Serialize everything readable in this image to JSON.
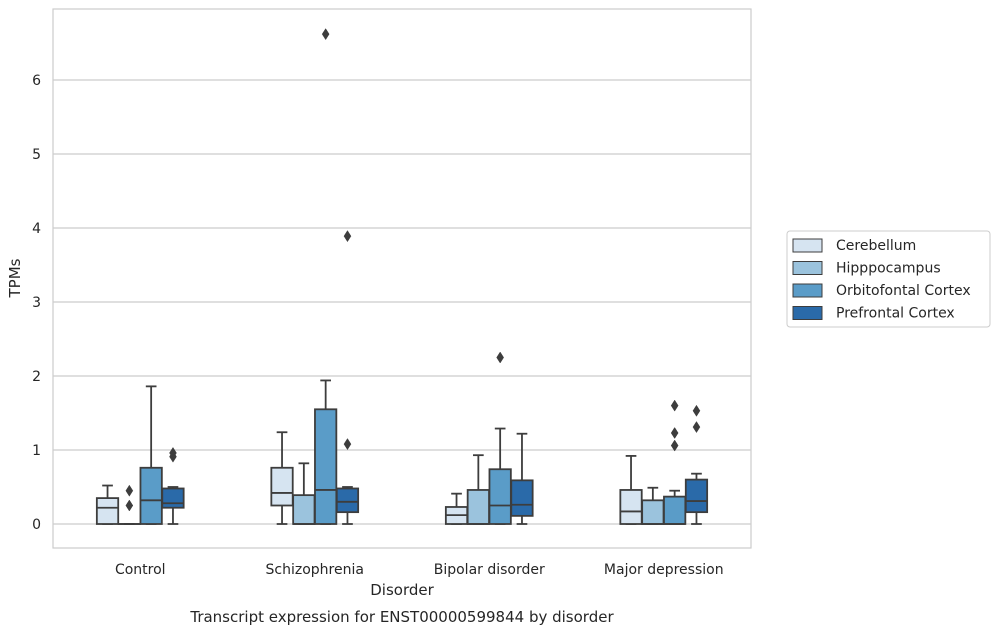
{
  "chart_data": {
    "type": "box",
    "title": "",
    "caption": "Transcript expression for ENST00000599844 by disorder",
    "xlabel": "Disorder",
    "ylabel": "TPMs",
    "ylim": [
      -0.32,
      6.95
    ],
    "yticks": [
      "0",
      "1",
      "2",
      "3",
      "4",
      "5",
      "6"
    ],
    "grid": true,
    "legend_position": "right",
    "categories": [
      "Control",
      "Schizophrenia",
      "Bipolar disorder",
      "Major depression"
    ],
    "series": [
      {
        "name": "Cerebellum",
        "color": "#d6e4f1",
        "boxes": [
          {
            "whisker_low": 0,
            "q1": 0,
            "median": 0.22,
            "q3": 0.35,
            "whisker_high": 0.52,
            "outliers": []
          },
          {
            "whisker_low": 0,
            "q1": 0.25,
            "median": 0.42,
            "q3": 0.76,
            "whisker_high": 1.24,
            "outliers": []
          },
          {
            "whisker_low": 0,
            "q1": 0,
            "median": 0.12,
            "q3": 0.23,
            "whisker_high": 0.41,
            "outliers": []
          },
          {
            "whisker_low": 0,
            "q1": 0,
            "median": 0.17,
            "q3": 0.46,
            "whisker_high": 0.92,
            "outliers": []
          }
        ]
      },
      {
        "name": "Hipppocampus",
        "color": "#9bc3dd",
        "boxes": [
          {
            "whisker_low": 0,
            "q1": 0,
            "median": 0,
            "q3": 0,
            "whisker_high": 0,
            "outliers": [
              0.25,
              0.45
            ]
          },
          {
            "whisker_low": 0,
            "q1": 0,
            "median": 0,
            "q3": 0.39,
            "whisker_high": 0.82,
            "outliers": []
          },
          {
            "whisker_low": 0,
            "q1": 0,
            "median": 0,
            "q3": 0.46,
            "whisker_high": 0.93,
            "outliers": []
          },
          {
            "whisker_low": 0,
            "q1": 0,
            "median": 0,
            "q3": 0.32,
            "whisker_high": 0.49,
            "outliers": []
          }
        ]
      },
      {
        "name": "Orbitofontal Cortex",
        "color": "#5a9cc8",
        "boxes": [
          {
            "whisker_low": 0,
            "q1": 0,
            "median": 0.32,
            "q3": 0.76,
            "whisker_high": 1.86,
            "outliers": []
          },
          {
            "whisker_low": 0,
            "q1": 0,
            "median": 0.46,
            "q3": 1.55,
            "whisker_high": 1.94,
            "outliers": [
              6.62
            ]
          },
          {
            "whisker_low": 0,
            "q1": 0,
            "median": 0.25,
            "q3": 0.74,
            "whisker_high": 1.29,
            "outliers": [
              2.25
            ]
          },
          {
            "whisker_low": 0,
            "q1": 0,
            "median": 0,
            "q3": 0.37,
            "whisker_high": 0.45,
            "outliers": [
              1.06,
              1.23,
              1.6
            ]
          }
        ]
      },
      {
        "name": "Prefrontal Cortex",
        "color": "#2a6aa9",
        "boxes": [
          {
            "whisker_low": 0,
            "q1": 0.22,
            "median": 0.28,
            "q3": 0.48,
            "whisker_high": 0.5,
            "outliers": [
              0.91,
              0.96
            ]
          },
          {
            "whisker_low": 0,
            "q1": 0.16,
            "median": 0.3,
            "q3": 0.48,
            "whisker_high": 0.5,
            "outliers": [
              1.08,
              3.89
            ]
          },
          {
            "whisker_low": 0,
            "q1": 0.11,
            "median": 0.26,
            "q3": 0.59,
            "whisker_high": 1.22,
            "outliers": []
          },
          {
            "whisker_low": 0,
            "q1": 0.16,
            "median": 0.31,
            "q3": 0.6,
            "whisker_high": 0.68,
            "outliers": [
              1.31,
              1.53
            ]
          }
        ]
      }
    ]
  }
}
